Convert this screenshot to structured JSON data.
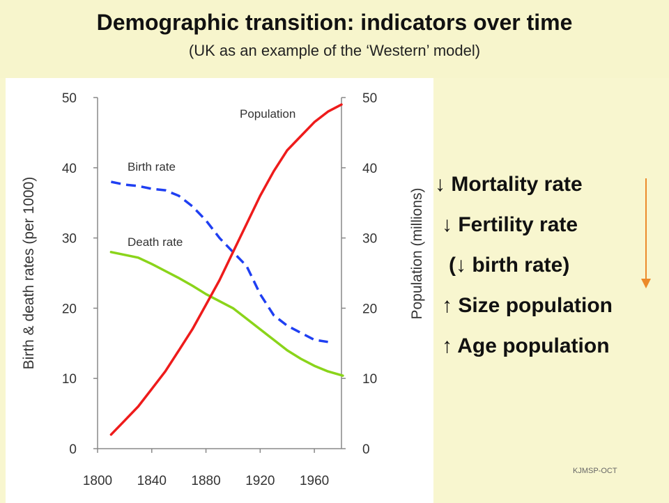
{
  "header": {
    "title": "Demographic transition: indicators over time",
    "subtitle": "(UK as an example of the ‘Western’ model)"
  },
  "chart_data": {
    "type": "line",
    "title": "",
    "xlabel": "",
    "ylabel_left": "Birth & death rates (per 1000)",
    "ylabel_right": "Population (millions)",
    "xlim": [
      1800,
      1980
    ],
    "ylim_left": [
      0,
      50
    ],
    "ylim_right": [
      0,
      50
    ],
    "x_ticks": [
      1800,
      1840,
      1880,
      1920,
      1960
    ],
    "y_ticks_left": [
      0,
      10,
      20,
      30,
      40,
      50
    ],
    "y_ticks_right": [
      0,
      10,
      20,
      30,
      40,
      50
    ],
    "grid": false,
    "series": [
      {
        "name": "Birth rate",
        "axis": "left",
        "color": "#1f3ff2",
        "style": "dashed",
        "x": [
          1810,
          1820,
          1830,
          1840,
          1850,
          1860,
          1870,
          1880,
          1890,
          1900,
          1910,
          1920,
          1930,
          1940,
          1950,
          1960,
          1970
        ],
        "y": [
          38,
          37.6,
          37.4,
          37,
          36.8,
          36,
          34.5,
          32.5,
          30,
          28,
          26,
          22,
          19,
          17.5,
          16.5,
          15.5,
          15.2
        ]
      },
      {
        "name": "Death rate",
        "axis": "left",
        "color": "#8ad41a",
        "style": "solid",
        "x": [
          1810,
          1820,
          1830,
          1840,
          1850,
          1860,
          1870,
          1880,
          1890,
          1900,
          1910,
          1920,
          1930,
          1940,
          1950,
          1960,
          1970,
          1981
        ],
        "y": [
          28,
          27.6,
          27.2,
          26.3,
          25.3,
          24.3,
          23.2,
          22,
          21,
          20,
          18.5,
          17,
          15.5,
          14,
          12.8,
          11.8,
          11,
          10.4
        ]
      },
      {
        "name": "Population",
        "axis": "right",
        "color": "#ee1b1b",
        "style": "solid",
        "x": [
          1810,
          1820,
          1830,
          1840,
          1850,
          1860,
          1870,
          1880,
          1890,
          1900,
          1910,
          1920,
          1930,
          1940,
          1950,
          1960,
          1970,
          1980
        ],
        "y": [
          2,
          4,
          6,
          8.5,
          11,
          14,
          17,
          20.5,
          24,
          28,
          32,
          36,
          39.5,
          42.5,
          44.5,
          46.5,
          48,
          49
        ]
      }
    ]
  },
  "colors": {
    "background": "#f8f6cf",
    "chart_background": "#ffffff",
    "axis": "#888888",
    "arrow": "#ec8a2a"
  },
  "indicators": {
    "mortality": "↓ Mortality rate",
    "fertility": "↓ Fertility rate",
    "birth_rate": "(↓ birth rate)",
    "size_population": "↑ Size population",
    "age_population": "↑ Age population"
  },
  "credit": "KJMSP-OCT"
}
